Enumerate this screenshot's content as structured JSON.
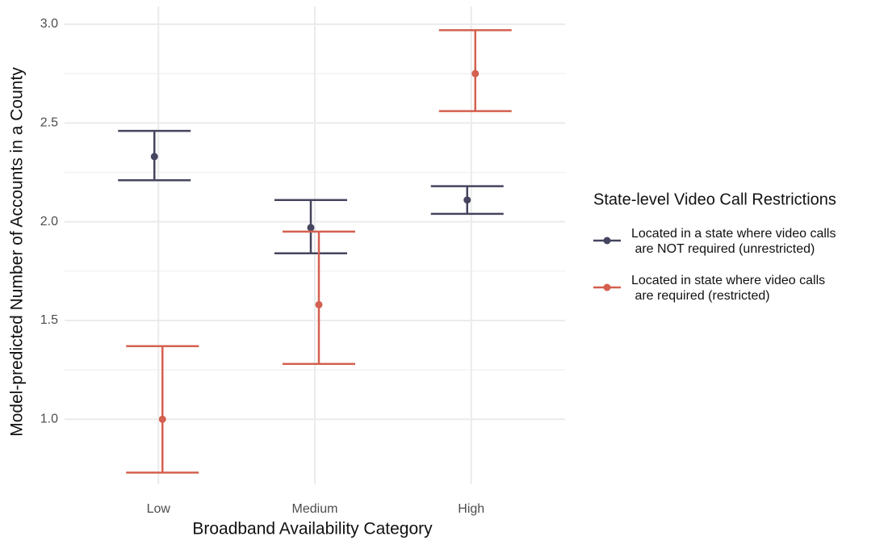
{
  "chart_data": {
    "type": "errorbar",
    "x_label": "Broadband Availability Category",
    "y_label": "Model-predicted Number of Accounts in a County",
    "categories": [
      "Low",
      "Medium",
      "High"
    ],
    "legend_title": "State-level Video Call Restrictions",
    "legend_position": "right",
    "grid": true,
    "ylim": [
      0.67,
      3.09
    ],
    "yticks": [
      {
        "value": 1,
        "label": "1.0"
      },
      1.5,
      {
        "value": 2,
        "label": "2.0"
      },
      2.5,
      {
        "value": 3,
        "label": "3.0"
      }
    ],
    "series": [
      {
        "name": "Located in a state where video calls\n are NOT required (unrestricted)",
        "color": "#45455f",
        "values": [
          2.33,
          1.97,
          2.11
        ],
        "lower": [
          2.21,
          1.84,
          2.04
        ],
        "upper": [
          2.46,
          2.11,
          2.18
        ]
      },
      {
        "name": "Located in state where video calls\n are required (restricted)",
        "color": "#d4604f",
        "values": [
          1.0,
          1.58,
          2.75
        ],
        "lower": [
          0.73,
          1.28,
          2.56
        ],
        "upper": [
          1.37,
          1.95,
          2.97
        ]
      }
    ]
  }
}
